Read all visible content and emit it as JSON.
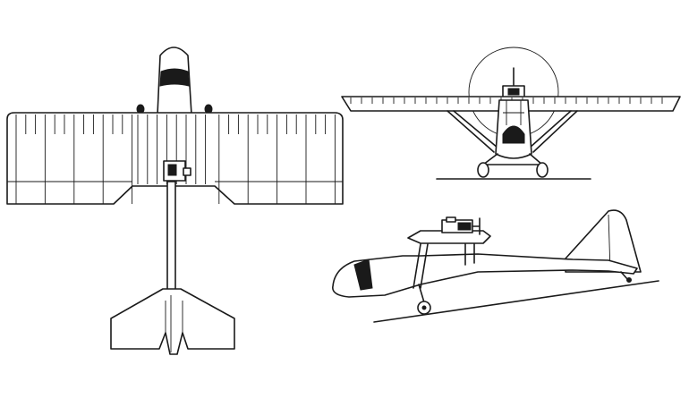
{
  "figure": {
    "background": "#ffffff",
    "line_color": "#1a1a1a",
    "views": [
      {
        "view": "top",
        "icon": "aircraft-plan-view"
      },
      {
        "view": "front",
        "icon": "aircraft-front-view"
      },
      {
        "view": "side",
        "icon": "aircraft-side-view"
      }
    ]
  }
}
